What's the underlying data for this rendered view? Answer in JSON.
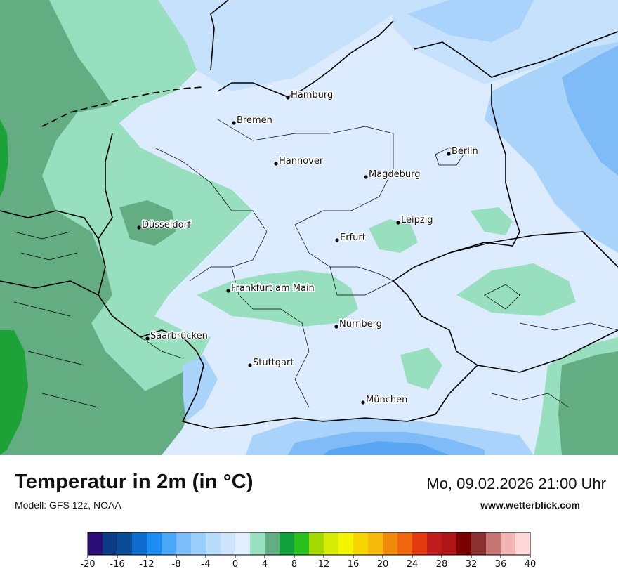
{
  "map": {
    "colors": {
      "sea_mid_blue": "#c5e1fb",
      "land_light_blue": "#dcebfd",
      "cold_blue": "#a9d3fa",
      "colder_blue": "#7fbcf7",
      "coldest_blue": "#5aa6f2",
      "light_green": "#98dfbf",
      "mid_green": "#64ac82",
      "bright_green": "#1ca236",
      "border": "#000000"
    },
    "cities": [
      {
        "name": "Hamburg"
      },
      {
        "name": "Bremen"
      },
      {
        "name": "Hannover"
      },
      {
        "name": "Berlin"
      },
      {
        "name": "Magdeburg"
      },
      {
        "name": "Düsseldorf"
      },
      {
        "name": "Leipzig"
      },
      {
        "name": "Erfurt"
      },
      {
        "name": "Frankfurt am Main"
      },
      {
        "name": "Nürnberg"
      },
      {
        "name": "Saarbrücken"
      },
      {
        "name": "Stuttgart"
      },
      {
        "name": "München"
      }
    ]
  },
  "footer": {
    "title": "Temperatur in 2m (in °C)",
    "model": "Modell: GFS 12z, NOAA",
    "datetime": "Mo, 09.02.2026 21:00 Uhr",
    "site": "www.wetterblick.com"
  },
  "legend": {
    "colors": [
      "#2c0d77",
      "#0b3b84",
      "#0a4d96",
      "#0d6ccd",
      "#1a8cf2",
      "#4aa7f8",
      "#7cbcf9",
      "#9bcdfa",
      "#b8dcfc",
      "#cce4fd",
      "#e0eefe",
      "#99e0c0",
      "#65ad84",
      "#10a13c",
      "#29c01e",
      "#a3d901",
      "#d6ec03",
      "#f4f500",
      "#f6d500",
      "#f6bb0a",
      "#f28b0c",
      "#f0660e",
      "#e43a0f",
      "#c01c1c",
      "#b01518",
      "#7a0000",
      "#8b3030",
      "#c67575",
      "#f2b3b3",
      "#ffd9da"
    ],
    "ticks": [
      -20,
      -16,
      -12,
      -8,
      -4,
      0,
      4,
      8,
      12,
      16,
      20,
      24,
      28,
      32,
      36,
      40
    ]
  }
}
